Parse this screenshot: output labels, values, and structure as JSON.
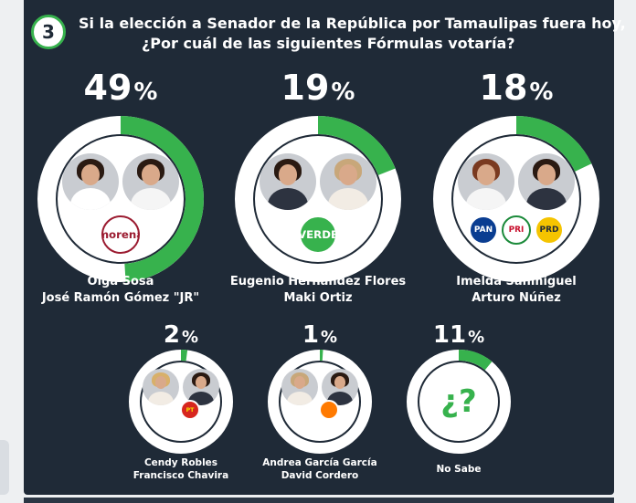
{
  "question": {
    "number": "3",
    "line1": "Si la elección a Senador de la República por Tamaulipas fuera hoy,",
    "line2": "¿Por cuál de las siguientes Fórmulas votaría?"
  },
  "colors": {
    "ring_fill": "#37b24d",
    "ring_track": "#ffffff",
    "background": "#1f2a37"
  },
  "chart_data": {
    "type": "pie",
    "unit": "%",
    "categories": [
      "Olga Sosa / José Ramón Gómez \"JR\"",
      "Eugenio Hernández Flores / Maki Ortiz",
      "Imelda Sanmiguel / Arturo Núñez",
      "Cendy Robles / Francisco Chavira",
      "Andrea García García / David Cordero",
      "No Sabe"
    ],
    "values": [
      49,
      19,
      18,
      2,
      1,
      11
    ]
  },
  "candidates": [
    {
      "pct": "49",
      "sym": "%",
      "line1": "Olga Sosa",
      "line2": "José Ramón Gómez \"JR\"",
      "logos": [
        "morena"
      ],
      "logo_text": [
        "morena"
      ]
    },
    {
      "pct": "19",
      "sym": "%",
      "line1": "Eugenio Hernández Flores",
      "line2": "Maki Ortiz",
      "logos": [
        "verde"
      ],
      "logo_text": [
        "VERDE"
      ]
    },
    {
      "pct": "18",
      "sym": "%",
      "line1": "Imelda Sanmiguel",
      "line2": "Arturo Núñez",
      "logos": [
        "pan",
        "pri",
        "prd"
      ],
      "logo_text": [
        "PAN",
        "PRI",
        "PRD"
      ]
    },
    {
      "pct": "2",
      "sym": "%",
      "line1": "Cendy Robles",
      "line2": "Francisco Chavira",
      "logos": [
        "pt"
      ],
      "logo_text": [
        "PT"
      ]
    },
    {
      "pct": "1",
      "sym": "%",
      "line1": "Andrea García García",
      "line2": "David Cordero",
      "logos": [
        "movimiento-ciudadano"
      ],
      "logo_text": [
        ""
      ]
    },
    {
      "pct": "11",
      "sym": "%",
      "line1": "No Sabe",
      "line2": "",
      "logos": [],
      "logo_text": []
    }
  ],
  "unknown_symbol": "¿?"
}
